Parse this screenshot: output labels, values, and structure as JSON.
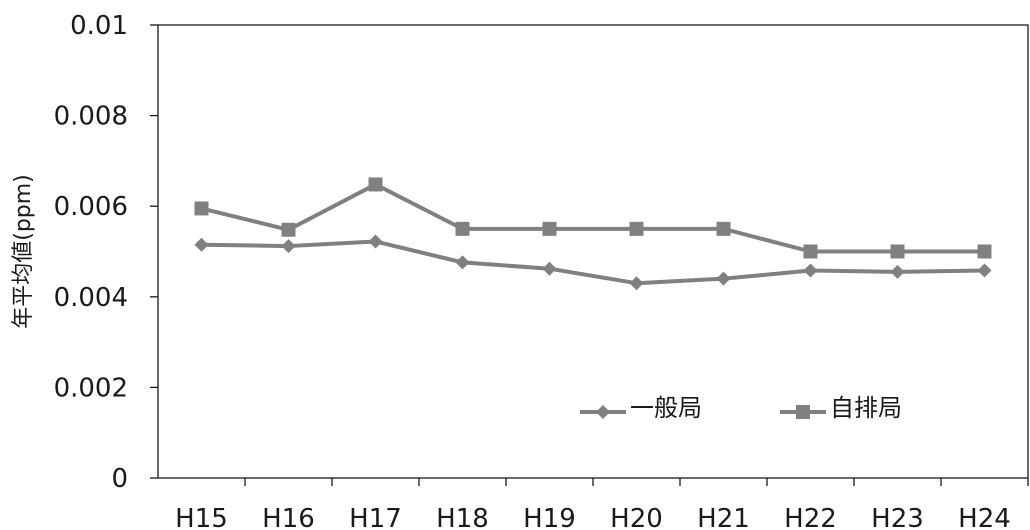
{
  "chart_data": {
    "type": "line",
    "title": "",
    "xlabel": "",
    "ylabel": "年平均値(ppm)",
    "categories": [
      "H15",
      "H16",
      "H17",
      "H18",
      "H19",
      "H20",
      "H21",
      "H22",
      "H23",
      "H24"
    ],
    "ylim": [
      0,
      0.01
    ],
    "yticks": [
      "0",
      "0.002",
      "0.004",
      "0.006",
      "0.008",
      "0.01"
    ],
    "grid": false,
    "legend": "bottom-right",
    "series": [
      {
        "name": "一般局",
        "marker": "diamond",
        "color": "#808080",
        "values": [
          0.00515,
          0.00512,
          0.00522,
          0.00476,
          0.00462,
          0.0043,
          0.0044,
          0.00458,
          0.00455,
          0.00458
        ]
      },
      {
        "name": "自排局",
        "marker": "square",
        "color": "#808080",
        "values": [
          0.00595,
          0.00548,
          0.00648,
          0.0055,
          0.0055,
          0.0055,
          0.0055,
          0.005,
          0.005,
          0.005
        ]
      }
    ]
  }
}
